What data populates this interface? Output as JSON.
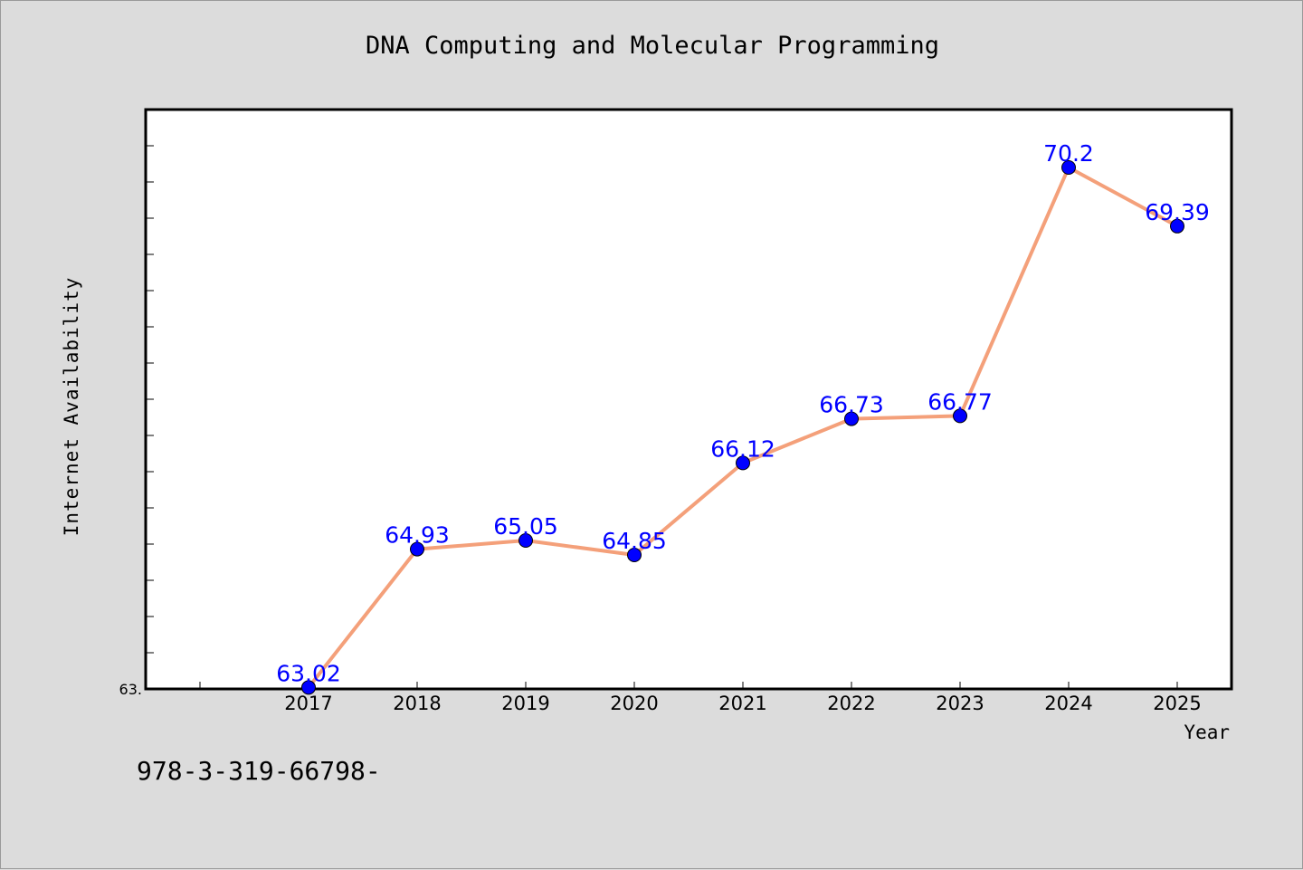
{
  "chart_data": {
    "type": "line",
    "title": "DNA Computing and Molecular Programming",
    "xlabel": "Year",
    "ylabel": "Internet Availability",
    "x": [
      "2017",
      "2018",
      "2019",
      "2020",
      "2021",
      "2022",
      "2023",
      "2024",
      "2025"
    ],
    "series": [
      {
        "values": [
          63.02,
          64.93,
          65.05,
          64.85,
          66.12,
          66.73,
          66.77,
          70.2,
          69.39
        ]
      }
    ],
    "data_labels": [
      "63.02",
      "64.93",
      "65.05",
      "64.85",
      "66.12",
      "66.73",
      "66.77",
      "70.2",
      "69.39"
    ],
    "y_tick_labels_shown": [
      "63."
    ],
    "ylim": [
      63.0,
      71.0
    ],
    "grid": false,
    "line_color": "#f4a07a",
    "marker_color": "#0000ff",
    "label_color": "#0000ff",
    "background_color": "#dcdcdc",
    "plot_background": "#ffffff"
  },
  "footer": {
    "text": "978-3-319-66798-"
  }
}
